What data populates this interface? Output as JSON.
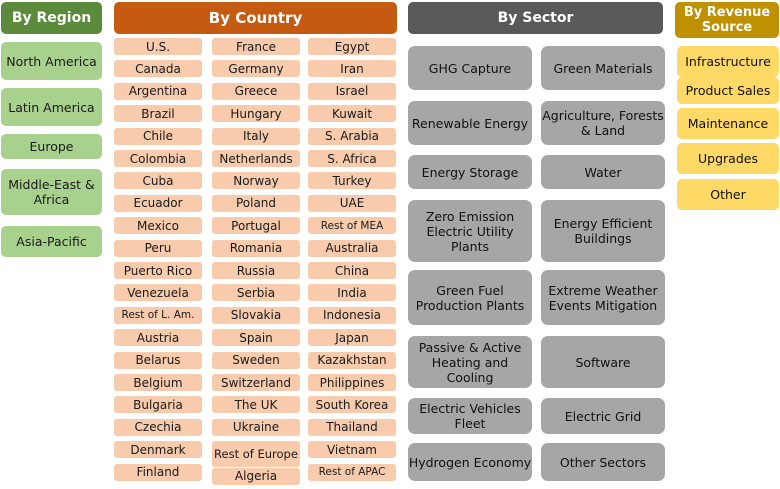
{
  "headers": {
    "region": "By Region",
    "country": "By Country",
    "sector": "By Sector",
    "revenue": "By Revenue Source"
  },
  "regions": [
    "North America",
    "Latin America",
    "Europe",
    "Middle-East & Africa",
    "Asia-Pacific"
  ],
  "countries": {
    "col1": [
      "U.S.",
      "Canada",
      "Argentina",
      "Brazil",
      "Chile",
      "Colombia",
      "Cuba",
      "Ecuador",
      "Mexico",
      "Peru",
      "Puerto Rico",
      "Venezuela",
      "Rest of L. Am.",
      "Austria",
      "Belarus",
      "Belgium",
      "Bulgaria",
      "Czechia",
      "Denmark",
      "Finland"
    ],
    "col2": [
      "France",
      "Germany",
      "Greece",
      "Hungary",
      "Italy",
      "Netherlands",
      "Norway",
      "Poland",
      "Portugal",
      "Romania",
      "Russia",
      "Serbia",
      "Slovakia",
      "Spain",
      "Sweden",
      "Switzerland",
      "The UK",
      "Ukraine",
      "Rest of Europe",
      "Algeria"
    ],
    "col3": [
      "Egypt",
      "Iran",
      "Israel",
      "Kuwait",
      "S. Arabia",
      "S. Africa",
      "Turkey",
      "UAE",
      "Rest of MEA",
      "Australia",
      "China",
      "India",
      "Indonesia",
      "Japan",
      "Kazakhstan",
      "Philippines",
      "South Korea",
      "Thailand",
      "Vietnam",
      "Rest of APAC"
    ]
  },
  "sectors": {
    "left": [
      "GHG Capture",
      "Renewable Energy",
      "Energy Storage",
      "Zero Emission Electric Utility Plants",
      "Green Fuel Production Plants",
      "Passive & Active Heating and Cooling",
      "Electric Vehicles Fleet",
      "Hydrogen Economy"
    ],
    "right": [
      "Green Materials",
      "Agriculture, Forests & Land",
      "Water",
      "Energy Efficient Buildings",
      "Extreme Weather Events Mitigation",
      "Software",
      "Electric Grid",
      "Other Sectors"
    ]
  },
  "revenue_sources": [
    "Infrastructure",
    "Product Sales",
    "Maintenance",
    "Upgrades",
    "Other"
  ],
  "colors": {
    "region_header": "#5a8a3a",
    "region_box": "#a9d18e",
    "country_header": "#c55a11",
    "country_box": "#f8cbad",
    "sector_header": "#595959",
    "sector_box": "#a6a6a6",
    "revenue_header": "#bf9000",
    "revenue_box": "#ffd966"
  }
}
